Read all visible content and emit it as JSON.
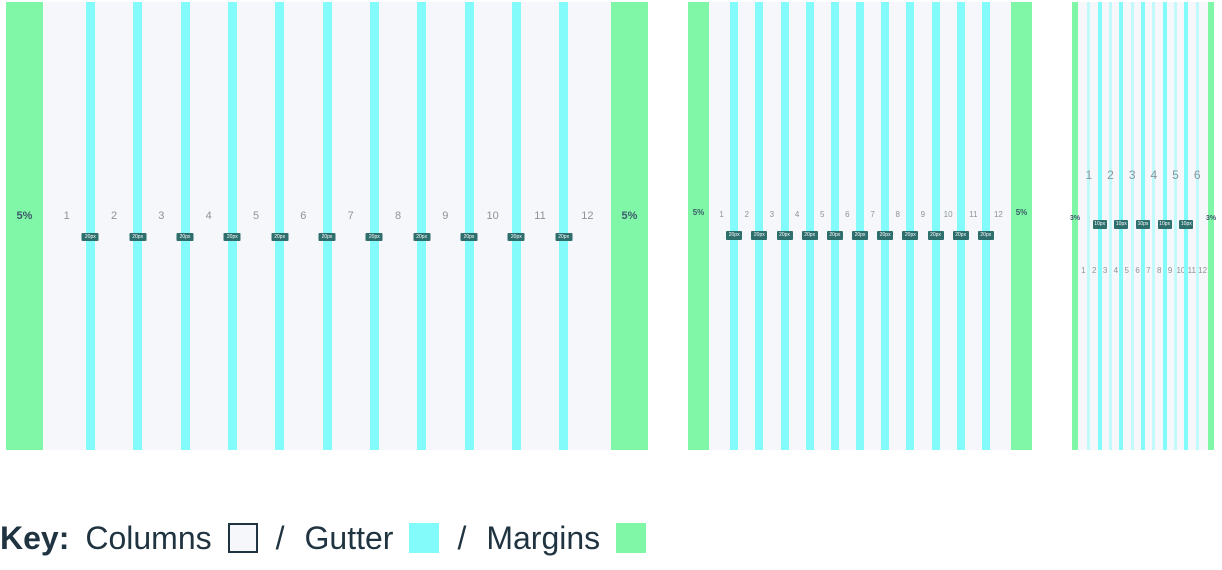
{
  "grids": [
    {
      "margin_label": "5%",
      "column_numbers": [
        "1",
        "2",
        "3",
        "4",
        "5",
        "6",
        "7",
        "8",
        "9",
        "10",
        "11",
        "12"
      ],
      "gutter_label": "20px",
      "gutter_count": 11
    },
    {
      "margin_label": "5%",
      "column_numbers": [
        "1",
        "2",
        "3",
        "4",
        "5",
        "6",
        "7",
        "8",
        "9",
        "10",
        "11",
        "12"
      ],
      "gutter_label": "20px",
      "gutter_count": 11
    },
    {
      "margin_label": "3%",
      "column_numbers": [
        "1",
        "2",
        "3",
        "4",
        "5",
        "6"
      ],
      "gutter_label": "10px",
      "gutter_count": 5,
      "sub_column_numbers": [
        "1",
        "2",
        "3",
        "4",
        "5",
        "6",
        "7",
        "8",
        "9",
        "10",
        "11",
        "12"
      ]
    }
  ],
  "key": {
    "title": "Key:",
    "columns_label": "Columns",
    "gutter_label": "Gutter",
    "margins_label": "Margins",
    "separator": "/"
  },
  "colors": {
    "column": "#f5f7fb",
    "gutter": "#84fbfb",
    "margin": "#7ff7a6",
    "tag": "#2e6e6d"
  }
}
